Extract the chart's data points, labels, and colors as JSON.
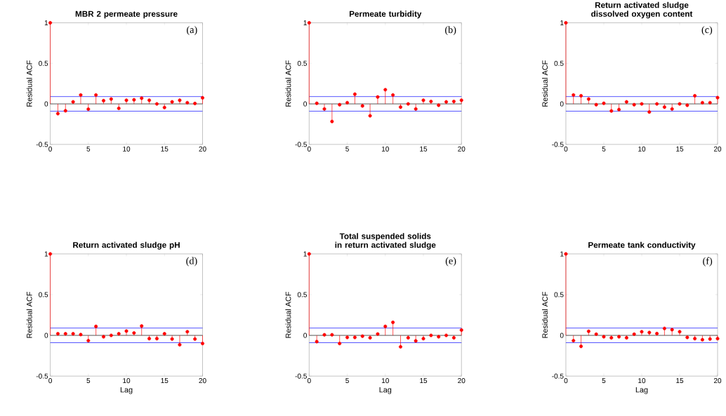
{
  "chart_data": [
    {
      "type": "lollipop",
      "title": "MBR 2 permeate pressure",
      "ylabel": "Residual ACF",
      "annotations": [
        "(a)"
      ],
      "marker": "circle",
      "color": "#ff0000",
      "x": [
        0,
        1,
        2,
        3,
        4,
        5,
        6,
        7,
        8,
        9,
        10,
        11,
        12,
        13,
        14,
        15,
        16,
        17,
        18,
        19,
        20
      ],
      "values": [
        1,
        -0.12,
        -0.085,
        0.025,
        0.11,
        -0.065,
        0.11,
        0.04,
        0.06,
        -0.055,
        0.045,
        0.05,
        0.07,
        0.045,
        0,
        -0.045,
        0.025,
        0.045,
        0.015,
        0.005,
        0.075
      ],
      "xlim": [
        0,
        20
      ],
      "ylim": [
        -0.5,
        1
      ],
      "xticks": [
        0,
        5,
        10,
        15,
        20
      ],
      "yticks": [
        -0.5,
        0,
        0.5,
        1
      ],
      "ref_lines": [
        {
          "axis": "y",
          "value": 0.09,
          "color": "#0000ff"
        },
        {
          "axis": "y",
          "value": -0.09,
          "color": "#0000ff"
        }
      ]
    },
    {
      "type": "lollipop",
      "title": "Permeate turbidity",
      "ylabel": "Residual ACF",
      "annotations": [
        "(b)"
      ],
      "marker": "circle",
      "color": "#ff0000",
      "x": [
        0,
        1,
        2,
        3,
        4,
        5,
        6,
        7,
        8,
        9,
        10,
        11,
        12,
        13,
        14,
        15,
        16,
        17,
        18,
        19,
        20
      ],
      "values": [
        1,
        0.007,
        -0.063,
        -0.217,
        -0.01,
        0.015,
        0.12,
        -0.025,
        -0.147,
        0.085,
        0.175,
        0.11,
        -0.04,
        0,
        -0.063,
        0.045,
        0.03,
        -0.017,
        0.025,
        0.03,
        0.045
      ],
      "xlim": [
        0,
        20
      ],
      "ylim": [
        -0.5,
        1
      ],
      "xticks": [
        0,
        5,
        10,
        15,
        20
      ],
      "yticks": [
        -0.5,
        0,
        0.5,
        1
      ],
      "ref_lines": [
        {
          "axis": "y",
          "value": 0.09,
          "color": "#0000ff"
        },
        {
          "axis": "y",
          "value": -0.09,
          "color": "#0000ff"
        }
      ]
    },
    {
      "type": "lollipop",
      "title": "Return activated sludge dissolved oxygen content",
      "ylabel": "Residual ACF",
      "annotations": [
        "(c)"
      ],
      "marker": "circle",
      "color": "#ff0000",
      "x": [
        0,
        1,
        2,
        3,
        4,
        5,
        6,
        7,
        8,
        9,
        10,
        11,
        12,
        13,
        14,
        15,
        16,
        17,
        18,
        19,
        20
      ],
      "values": [
        1,
        0.11,
        0.1,
        0.06,
        -0.01,
        0.007,
        -0.087,
        -0.07,
        0.025,
        -0.01,
        0,
        -0.1,
        0,
        -0.04,
        -0.063,
        0,
        -0.017,
        0.1,
        0.015,
        0.015,
        0.077
      ],
      "xlim": [
        0,
        20
      ],
      "ylim": [
        -0.5,
        1
      ],
      "xticks": [
        0,
        5,
        10,
        15,
        20
      ],
      "yticks": [
        -0.5,
        0,
        0.5,
        1
      ],
      "ref_lines": [
        {
          "axis": "y",
          "value": 0.09,
          "color": "#0000ff"
        },
        {
          "axis": "y",
          "value": -0.09,
          "color": "#0000ff"
        }
      ]
    },
    {
      "type": "lollipop",
      "title": "Return activated sludge pH",
      "xlabel": "Lag",
      "ylabel": "Residual ACF",
      "annotations": [
        "(d)"
      ],
      "marker": "circle",
      "color": "#ff0000",
      "x": [
        0,
        1,
        2,
        3,
        4,
        5,
        6,
        7,
        8,
        9,
        10,
        11,
        12,
        13,
        14,
        15,
        16,
        17,
        18,
        19,
        20
      ],
      "values": [
        1,
        0.02,
        0.02,
        0.02,
        0.01,
        -0.065,
        0.11,
        -0.017,
        0,
        0.02,
        0.053,
        0.03,
        0.115,
        -0.04,
        -0.04,
        0.02,
        -0.045,
        -0.115,
        0.045,
        -0.045,
        -0.1
      ],
      "xlim": [
        0,
        20
      ],
      "ylim": [
        -0.5,
        1
      ],
      "xticks": [
        0,
        5,
        10,
        15,
        20
      ],
      "yticks": [
        -0.5,
        0,
        0.5,
        1
      ],
      "ref_lines": [
        {
          "axis": "y",
          "value": 0.09,
          "color": "#0000ff"
        },
        {
          "axis": "y",
          "value": -0.09,
          "color": "#0000ff"
        }
      ]
    },
    {
      "type": "lollipop",
      "title": "Total suspended solids in return activated sludge",
      "xlabel": "Lag",
      "ylabel": "Residual ACF",
      "annotations": [
        "(e)"
      ],
      "marker": "circle",
      "color": "#ff0000",
      "x": [
        0,
        1,
        2,
        3,
        4,
        5,
        6,
        7,
        8,
        9,
        10,
        11,
        12,
        13,
        14,
        15,
        16,
        17,
        18,
        19,
        20
      ],
      "values": [
        1,
        -0.077,
        0.007,
        0.007,
        -0.1,
        -0.025,
        -0.025,
        -0.01,
        -0.03,
        0.017,
        0.11,
        0.16,
        -0.14,
        -0.03,
        -0.068,
        -0.04,
        0,
        -0.017,
        0,
        -0.03,
        0.065
      ],
      "xlim": [
        0,
        20
      ],
      "ylim": [
        -0.5,
        1
      ],
      "xticks": [
        0,
        5,
        10,
        15,
        20
      ],
      "yticks": [
        -0.5,
        0,
        0.5,
        1
      ],
      "ref_lines": [
        {
          "axis": "y",
          "value": 0.09,
          "color": "#0000ff"
        },
        {
          "axis": "y",
          "value": -0.09,
          "color": "#0000ff"
        }
      ]
    },
    {
      "type": "lollipop",
      "title": "Permeate tank conductivity",
      "xlabel": "Lag",
      "ylabel": "Residual ACF",
      "annotations": [
        "(f)"
      ],
      "marker": "circle",
      "color": "#ff0000",
      "x": [
        0,
        1,
        2,
        3,
        4,
        5,
        6,
        7,
        8,
        9,
        10,
        11,
        12,
        13,
        14,
        15,
        16,
        17,
        18,
        19,
        20
      ],
      "values": [
        1,
        -0.065,
        -0.135,
        0.05,
        0.015,
        -0.017,
        -0.03,
        -0.017,
        -0.03,
        0.015,
        0.045,
        0.035,
        0.022,
        0.085,
        0.07,
        0.045,
        -0.025,
        -0.04,
        -0.053,
        -0.045,
        -0.04
      ],
      "xlim": [
        0,
        20
      ],
      "ylim": [
        -0.5,
        1
      ],
      "xticks": [
        0,
        5,
        10,
        15,
        20
      ],
      "yticks": [
        -0.5,
        0,
        0.5,
        1
      ],
      "ref_lines": [
        {
          "axis": "y",
          "value": 0.09,
          "color": "#0000ff"
        },
        {
          "axis": "y",
          "value": -0.09,
          "color": "#0000ff"
        }
      ]
    }
  ]
}
